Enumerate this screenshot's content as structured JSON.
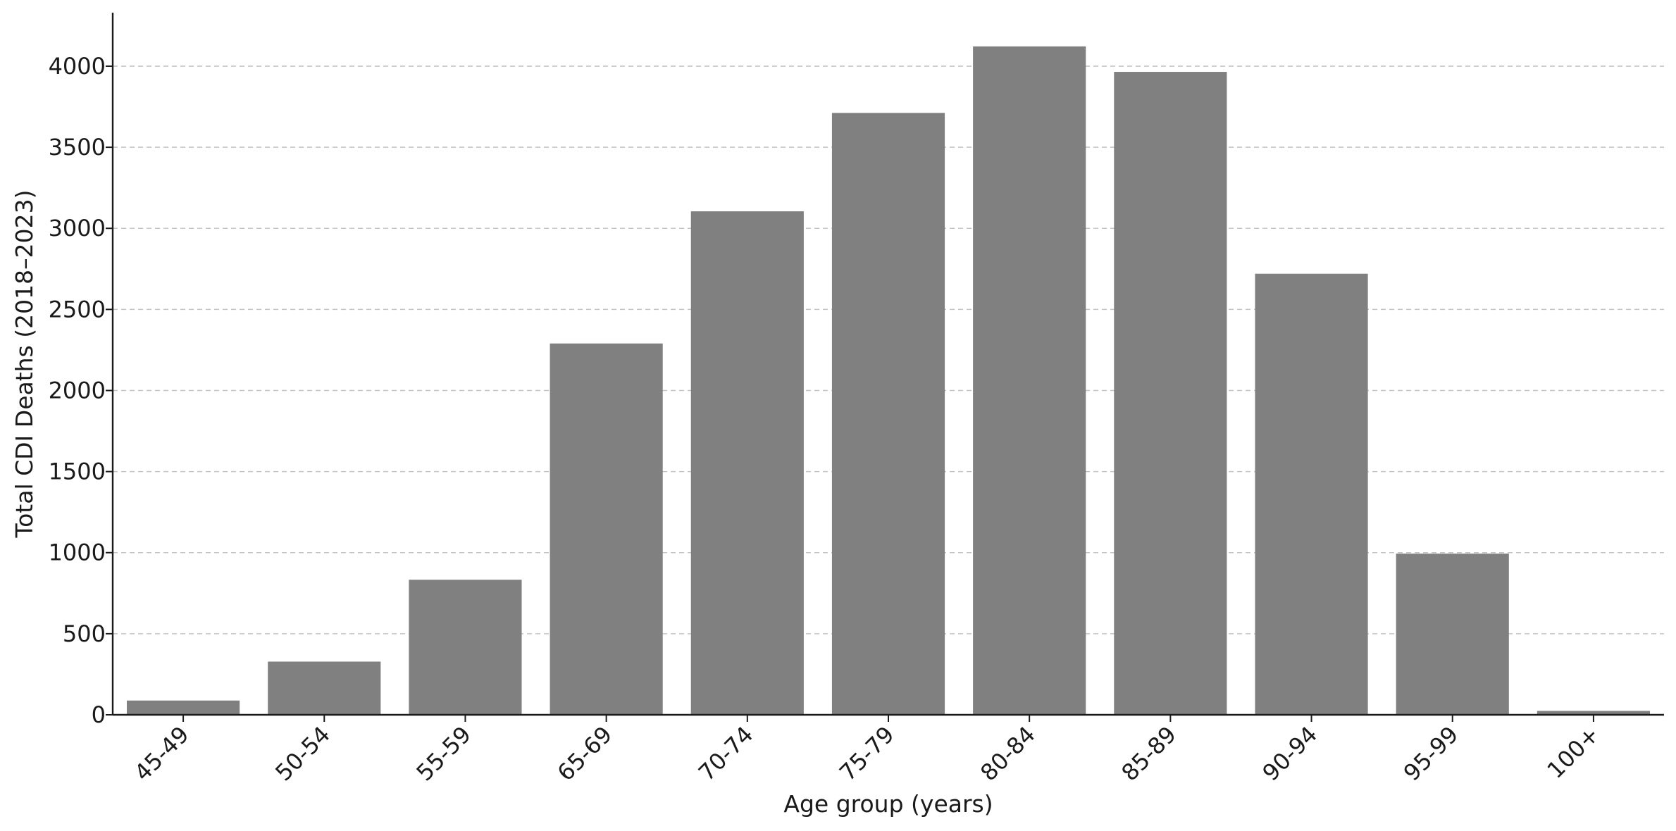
{
  "chart_data": {
    "type": "bar",
    "title": "",
    "xlabel": "Age group (years)",
    "ylabel": "Total CDI Deaths (2018–2023)",
    "categories": [
      "45-49",
      "50-54",
      "55-59",
      "65-69",
      "70-74",
      "75-79",
      "80-84",
      "85-89",
      "90-94",
      "95-99",
      "100+"
    ],
    "values": [
      88,
      328,
      833,
      2290,
      3105,
      3712,
      4122,
      3965,
      2720,
      994,
      24
    ],
    "ylim": [
      0,
      4330
    ],
    "yticks": [
      0,
      500,
      1000,
      1500,
      2000,
      2500,
      3000,
      3500,
      4000
    ],
    "grid": "horizontal dashed",
    "colors": {
      "bar": "#808080",
      "grid": "#c4c4c4",
      "axis": "#1a1a1a"
    }
  }
}
